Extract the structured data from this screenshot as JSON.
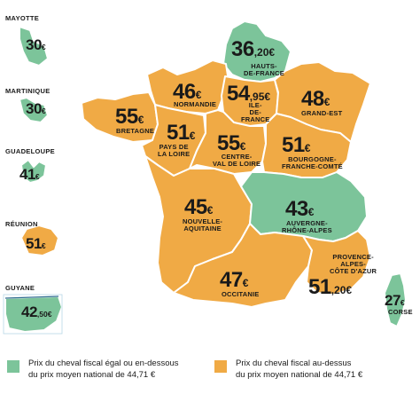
{
  "colors": {
    "green": "#7cc49a",
    "orange": "#f0aa45",
    "border": "#ffffff",
    "ink": "#1a1a1a",
    "map_bg": "#ffffff"
  },
  "regions": [
    {
      "key": "hdf",
      "name": "HAUTS-\nDE-FRANCE",
      "price_main": "36",
      "price_unit": ",20€",
      "category": "green"
    },
    {
      "key": "nor",
      "name": "NORMANDIE",
      "price_main": "46",
      "price_unit": "€",
      "category": "orange"
    },
    {
      "key": "idf",
      "name": "ILE-\nDE-\nFRANCE",
      "price_main": "54",
      "price_unit": ",95€",
      "category": "orange"
    },
    {
      "key": "ge",
      "name": "GRAND-EST",
      "price_main": "48",
      "price_unit": "€",
      "category": "orange"
    },
    {
      "key": "bre",
      "name": "BRETAGNE",
      "price_main": "55",
      "price_unit": "€",
      "category": "orange"
    },
    {
      "key": "pdl",
      "name": "PAYS DE\nLA LOIRE",
      "price_main": "51",
      "price_unit": "€",
      "category": "orange"
    },
    {
      "key": "cvl",
      "name": "CENTRE-\nVAL DE LOIRE",
      "price_main": "55",
      "price_unit": "€",
      "category": "orange"
    },
    {
      "key": "bfc",
      "name": "BOURGOGNE-\nFRANCHE-COMTÉ",
      "price_main": "51",
      "price_unit": "€",
      "category": "orange"
    },
    {
      "key": "na",
      "name": "NOUVELLE-\nAQUITAINE",
      "price_main": "45",
      "price_unit": "€",
      "category": "orange"
    },
    {
      "key": "ara",
      "name": "AUVERGNE-\nRHÔNE-ALPES",
      "price_main": "43",
      "price_unit": "€",
      "category": "green"
    },
    {
      "key": "occ",
      "name": "OCCITANIE",
      "price_main": "47",
      "price_unit": "€",
      "category": "orange"
    },
    {
      "key": "paca",
      "name": "PROVENCE-\nALPES-\nCÔTE D'AZUR",
      "price_main": "51",
      "price_unit": ",20€",
      "category": "orange"
    },
    {
      "key": "cor",
      "name": "CORSE",
      "price_main": "27",
      "price_unit": "€",
      "category": "green"
    }
  ],
  "overseas": [
    {
      "key": "may",
      "name": "MAYOTTE",
      "price_main": "30",
      "price_unit": "€",
      "category": "green"
    },
    {
      "key": "mar",
      "name": "MARTINIQUE",
      "price_main": "30",
      "price_unit": "€",
      "category": "green"
    },
    {
      "key": "gua",
      "name": "GUADELOUPE",
      "price_main": "41",
      "price_unit": "€",
      "category": "green"
    },
    {
      "key": "reu",
      "name": "RÉUNION",
      "price_main": "51",
      "price_unit": "€",
      "category": "orange"
    },
    {
      "key": "guy",
      "name": "GUYANE",
      "price_main": "42",
      "price_unit": ",50€",
      "category": "green"
    }
  ],
  "legend": {
    "green_text": "Prix du cheval fiscal égal ou en-dessous\ndu prix moyen national de 44,71 €",
    "orange_text": "Prix du cheval fiscal au-dessus\ndu prix moyen national de 44,71 €"
  }
}
